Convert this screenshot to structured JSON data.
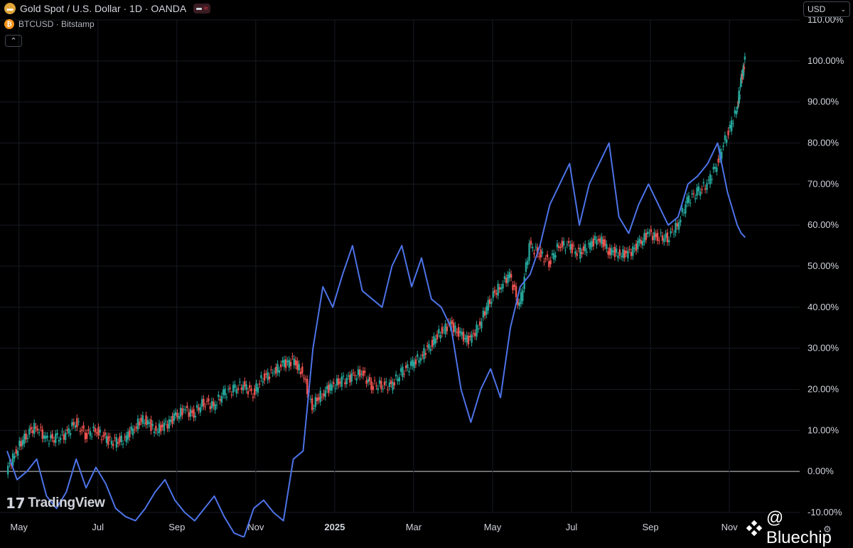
{
  "legend": {
    "gold_label": "Gold Spot / U.S. Dollar · 1D · OANDA",
    "btc_label": "BTCUSD · Bitstamp"
  },
  "controls": {
    "currency": "USD",
    "collapse_glyph": "⌃"
  },
  "branding": {
    "logo_text": "TradingView",
    "logo_mark": "17",
    "watermark": "@ Bluechip"
  },
  "icons": {
    "gold": "gold-bar-icon",
    "btc": "bitcoin-icon",
    "settings": "gear-icon"
  },
  "colors": {
    "up": "#26a69a",
    "down": "#ef5350",
    "btc_line": "#4d73e8",
    "zero_line": "#d1d4dc",
    "grid": "#161a22"
  },
  "chart_data": {
    "type": "line",
    "y_axis": {
      "ticks": [
        "110.00%",
        "100.00%",
        "90.00%",
        "80.00%",
        "70.00%",
        "60.00%",
        "50.00%",
        "40.00%",
        "30.00%",
        "20.00%",
        "10.00%",
        "0.00%",
        "-10.00%"
      ],
      "ylim": [
        -10,
        110
      ],
      "unit": "%"
    },
    "x_axis": {
      "ticks": [
        "May",
        "Jul",
        "Sep",
        "Nov",
        "2025",
        "Mar",
        "May",
        "Jul",
        "Sep",
        "Nov"
      ],
      "xlim": [
        0,
        19
      ]
    },
    "series": [
      {
        "kind": "candlestick",
        "x": [
          0,
          0.25,
          0.5,
          0.75,
          1,
          1.25,
          1.5,
          1.75,
          2,
          2.25,
          2.5,
          2.75,
          3,
          3.25,
          3.5,
          3.75,
          4,
          4.25,
          4.5,
          4.75,
          5,
          5.25,
          5.5,
          5.75,
          6,
          6.25,
          6.5,
          6.75,
          7,
          7.25,
          7.5,
          7.75,
          8,
          8.25,
          8.5,
          8.75,
          9,
          9.25,
          9.5,
          9.75,
          10,
          10.25,
          10.5,
          10.75,
          11,
          11.25,
          11.5,
          11.75,
          12,
          12.25,
          12.5,
          12.75,
          13,
          13.25,
          13.5,
          13.75,
          14,
          14.25,
          14.5,
          14.75,
          15,
          15.25,
          15.5,
          15.75,
          16,
          16.25,
          16.5,
          16.75,
          17,
          17.25,
          17.5,
          17.75,
          18,
          18.25,
          18.5,
          18.6,
          18.7
        ],
        "values": [
          0,
          5,
          9,
          11,
          8,
          8,
          9,
          12,
          9,
          10,
          8,
          7,
          8,
          11,
          13,
          10,
          11,
          13,
          15,
          14,
          17,
          16,
          19,
          20,
          21,
          19,
          23,
          24,
          26,
          27,
          24,
          16,
          19,
          21,
          22,
          23,
          24,
          21,
          21,
          21,
          24,
          26,
          28,
          31,
          34,
          36,
          33,
          32,
          36,
          42,
          45,
          48,
          40,
          55,
          53,
          51,
          55,
          55,
          53,
          55,
          57,
          54,
          53,
          53,
          55,
          58,
          57,
          57,
          60,
          66,
          68,
          70,
          75,
          82,
          88,
          95,
          100
        ]
      },
      {
        "kind": "line",
        "x": [
          0,
          0.25,
          0.5,
          0.75,
          1,
          1.25,
          1.5,
          1.75,
          2,
          2.25,
          2.5,
          2.75,
          3,
          3.25,
          3.5,
          3.75,
          4,
          4.25,
          4.5,
          4.75,
          5,
          5.25,
          5.5,
          5.75,
          6,
          6.25,
          6.5,
          6.75,
          7,
          7.25,
          7.5,
          7.75,
          8,
          8.25,
          8.5,
          8.75,
          9,
          9.25,
          9.5,
          9.75,
          10,
          10.25,
          10.5,
          10.75,
          11,
          11.25,
          11.5,
          11.75,
          12,
          12.25,
          12.5,
          12.75,
          13,
          13.25,
          13.5,
          13.75,
          14,
          14.25,
          14.5,
          14.75,
          15,
          15.25,
          15.5,
          15.75,
          16,
          16.25,
          16.5,
          16.75,
          17,
          17.25,
          17.5,
          17.75,
          18,
          18.25,
          18.5,
          18.6,
          18.7
        ],
        "values": [
          5,
          -2,
          0,
          3,
          -6,
          -9,
          -5,
          3,
          -4,
          1,
          -3,
          -9,
          -11,
          -12,
          -9,
          -5,
          -2,
          -7,
          -10,
          -12,
          -9,
          -6,
          -11,
          -15,
          -16,
          -9,
          -7,
          -10,
          -12,
          3,
          5,
          30,
          45,
          40,
          48,
          55,
          44,
          42,
          40,
          50,
          55,
          45,
          52,
          42,
          40,
          35,
          20,
          12,
          20,
          25,
          18,
          35,
          45,
          48,
          55,
          65,
          70,
          75,
          60,
          70,
          75,
          80,
          62,
          58,
          65,
          70,
          65,
          60,
          62,
          70,
          72,
          75,
          80,
          68,
          60,
          58,
          57
        ]
      }
    ]
  }
}
